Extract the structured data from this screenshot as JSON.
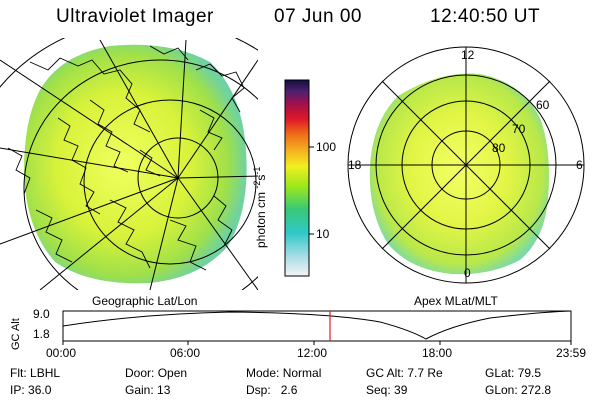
{
  "header": {
    "instrument": "Ultraviolet Imager",
    "date": "07 Jun 00",
    "time": "12:40:50 UT"
  },
  "colorbar": {
    "unit_prefix": "photon cm",
    "unit_exp1": "-2",
    "unit_s": "s",
    "unit_exp2": "-1",
    "tick_100": "100",
    "tick_10": "10"
  },
  "left_panel": {
    "caption": "Geographic Lat/Lon"
  },
  "right_panel": {
    "caption": "Apex MLat/MLT",
    "mlt_12": "12",
    "mlt_18": "18",
    "mlt_6": "6",
    "mlt_0": "0",
    "lat_60": "60",
    "lat_70": "70",
    "lat_80": "80"
  },
  "altitude_plot": {
    "ylabel": "GC Alt",
    "ymax": "9.0",
    "ymin": "1.8",
    "xticks": [
      "00:00",
      "06:00",
      "12:00",
      "18:00",
      "23:59"
    ]
  },
  "info": {
    "flt_label": "Flt:",
    "flt_value": "LBHL",
    "ip_label": "IP:",
    "ip_value": "36.0",
    "door_label": "Door:",
    "door_value": "Open",
    "gain_label": "Gain:",
    "gain_value": "13",
    "mode_label": "Mode:",
    "mode_value": "Normal",
    "dsp_label": "Dsp:",
    "dsp_value": "2.6",
    "gcalt_label": "GC Alt:",
    "gcalt_value": "7.7 Re",
    "seq_label": "Seq:",
    "seq_value": "39",
    "glat_label": "GLat:",
    "glat_value": "79.5",
    "glon_label": "GLon:",
    "glon_value": "272.8"
  }
}
